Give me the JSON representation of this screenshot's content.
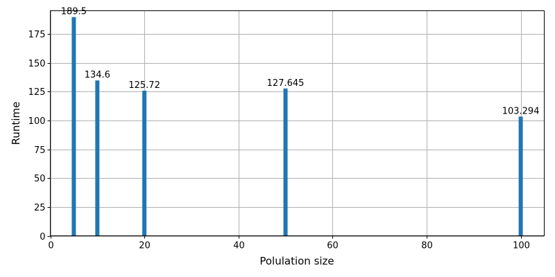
{
  "chart_data": {
    "type": "bar",
    "x": [
      5,
      10,
      20,
      50,
      100
    ],
    "values": [
      189.5,
      134.6,
      125.72,
      127.645,
      103.294
    ],
    "data_labels": [
      "189.5",
      "134.6",
      "125.72",
      "127.645",
      "103.294"
    ],
    "title": "",
    "xlabel": "Polulation size",
    "ylabel": "Runtime",
    "xlim": [
      0,
      105
    ],
    "ylim": [
      0,
      195
    ],
    "xticks": [
      0,
      20,
      40,
      60,
      80,
      100
    ],
    "yticks": [
      0,
      25,
      50,
      75,
      100,
      125,
      150,
      175
    ],
    "grid": true,
    "bar_color": "#1f77b4"
  }
}
